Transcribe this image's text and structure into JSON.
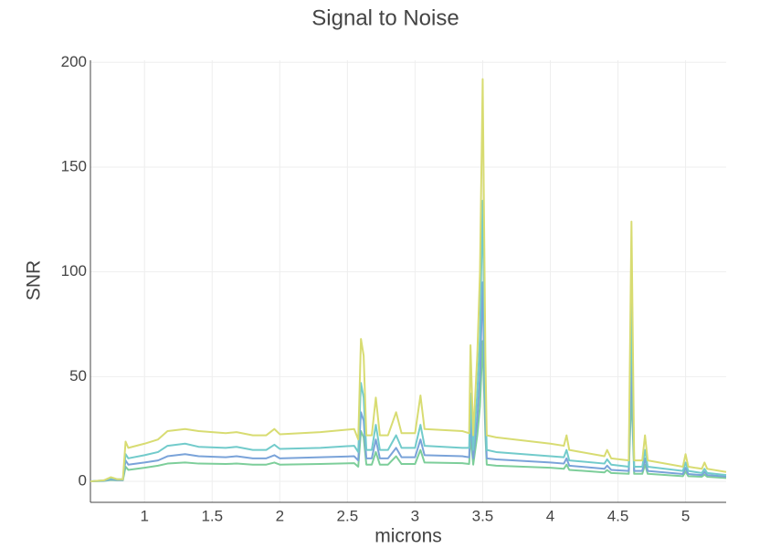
{
  "chart_data": {
    "type": "line",
    "title": "Signal to Noise",
    "xlabel": "microns",
    "ylabel": "SNR",
    "x": [
      0.6,
      0.7,
      0.75,
      0.8,
      0.84,
      0.86,
      0.88,
      1.0,
      1.1,
      1.17,
      1.3,
      1.4,
      1.6,
      1.68,
      1.8,
      1.9,
      1.96,
      2.0,
      2.3,
      2.55,
      2.58,
      2.6,
      2.62,
      2.64,
      2.68,
      2.71,
      2.74,
      2.8,
      2.86,
      2.9,
      3.0,
      3.04,
      3.07,
      3.35,
      3.4,
      3.41,
      3.43,
      3.46,
      3.48,
      3.5,
      3.52,
      3.53,
      3.6,
      4.0,
      4.1,
      4.12,
      4.14,
      4.4,
      4.42,
      4.45,
      4.58,
      4.6,
      4.62,
      4.68,
      4.7,
      4.72,
      4.98,
      5.0,
      5.02,
      5.12,
      5.14,
      5.16,
      5.3
    ],
    "series": [
      {
        "color": "#d8dc72",
        "values": [
          0,
          0.5,
          2,
          1,
          1,
          19,
          16,
          18,
          20,
          24,
          25,
          24,
          23,
          23.5,
          22,
          22,
          25,
          22.5,
          23.5,
          25,
          20,
          68,
          60,
          22,
          22,
          40,
          22,
          22,
          33,
          23,
          23,
          41,
          25,
          24,
          23,
          65,
          22,
          60,
          100,
          192,
          60,
          22,
          21,
          18,
          17,
          22,
          15,
          12,
          15,
          11,
          10,
          124,
          10,
          10,
          22,
          10,
          7,
          13,
          7,
          6,
          9,
          6,
          4.5
        ]
      },
      {
        "color": "#72cbcb",
        "values": [
          0,
          0.5,
          1.5,
          1,
          1,
          13,
          11,
          12.5,
          14,
          17,
          18,
          16.5,
          16,
          16.5,
          15,
          15,
          17.5,
          15.5,
          16,
          17,
          14,
          47,
          40,
          15,
          15,
          27,
          15,
          15,
          22,
          16,
          16,
          27,
          17,
          16,
          16,
          42,
          15,
          42,
          70,
          134,
          42,
          15,
          14,
          12,
          11.5,
          15,
          10,
          8.5,
          10.5,
          8,
          7,
          85,
          7,
          7,
          15,
          7,
          5,
          9,
          5,
          4,
          6,
          4,
          3
        ]
      },
      {
        "color": "#7aa3d9",
        "values": [
          0,
          0.3,
          1,
          0.7,
          0.7,
          10,
          8,
          9,
          10,
          12,
          13,
          12,
          11.5,
          12,
          11,
          11,
          12.5,
          11,
          11.5,
          12,
          10,
          33,
          29,
          11,
          11,
          20,
          11,
          11,
          16,
          11.5,
          11.5,
          20,
          12.5,
          12,
          11.5,
          30,
          11,
          30,
          50,
          95,
          30,
          11,
          10.5,
          9,
          8.5,
          11,
          7.5,
          6,
          7.5,
          5.5,
          5,
          60,
          5,
          5,
          11,
          5,
          3.5,
          6.5,
          3.5,
          3,
          4.5,
          3,
          2.3
        ]
      },
      {
        "color": "#7dce9a",
        "values": [
          0,
          0.2,
          0.7,
          0.5,
          0.5,
          7,
          5.5,
          6.5,
          7.5,
          8.5,
          9,
          8.5,
          8.3,
          8.5,
          8,
          8,
          9,
          8,
          8.3,
          8.7,
          7,
          24,
          21,
          8,
          8,
          14,
          8,
          8,
          12,
          8.3,
          8.3,
          15,
          9,
          8.7,
          8.3,
          22,
          8,
          22,
          36,
          67,
          22,
          8,
          7.5,
          6.5,
          6,
          8,
          5.5,
          4.3,
          5.4,
          4,
          3.6,
          43,
          3.6,
          3.6,
          8,
          3.6,
          2.5,
          4.7,
          2.5,
          2.2,
          3.2,
          2.2,
          1.6
        ]
      }
    ],
    "xlim": [
      0.6,
      5.3
    ],
    "xticks": [
      1,
      1.5,
      2,
      2.5,
      3,
      3.5,
      4,
      4.5,
      5
    ],
    "ylim": [
      -10,
      201
    ],
    "yticks": [
      0,
      50,
      100,
      150,
      200
    ],
    "grid": true
  }
}
